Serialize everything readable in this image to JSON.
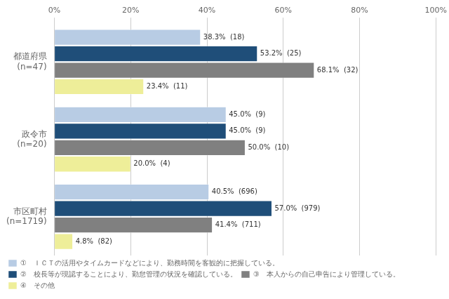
{
  "chart_data": {
    "type": "bar",
    "orientation": "horizontal",
    "categories": [
      [
        "都道府県",
        "(n=47)"
      ],
      [
        "政令市",
        "(n=20)"
      ],
      [
        "市区町村",
        "(n=1719)"
      ]
    ],
    "series": [
      {
        "name": "①　ＩＣＴの活用やタイムカードなどにより、勤務時間を客観的に把握している。",
        "color": "#b8cce4",
        "values": [
          38.3,
          45.0,
          40.5
        ],
        "value_labels": [
          "38.3%  (18)",
          "45.0%  (9)",
          "40.5%  (696)"
        ]
      },
      {
        "name": "②　校長等が現認することにより、勤怠管理の状況を確認している。",
        "color": "#1f4e79",
        "values": [
          53.2,
          45.0,
          57.0
        ],
        "value_labels": [
          "53.2%  (25)",
          "45.0%  (9)",
          "57.0%  (979)"
        ]
      },
      {
        "name": "③　本人からの自己申告により管理している。",
        "color": "#808080",
        "values": [
          68.1,
          50.0,
          41.4
        ],
        "value_labels": [
          "68.1%  (32)",
          "50.0%  (10)",
          "41.4%  (711)"
        ]
      },
      {
        "name": "④　その他",
        "color": "#eeee99",
        "values": [
          23.4,
          20.0,
          4.8
        ],
        "value_labels": [
          "23.4%  (11)",
          "20.0%  (4)",
          "4.8%  (82)"
        ]
      }
    ],
    "xlim": [
      0,
      100
    ],
    "xticks": [
      {
        "value": 0,
        "label": "0%"
      },
      {
        "value": 20,
        "label": "20%"
      },
      {
        "value": 40,
        "label": "40%"
      },
      {
        "value": 60,
        "label": "60%"
      },
      {
        "value": 80,
        "label": "80%"
      },
      {
        "value": 100,
        "label": "100%"
      }
    ],
    "grid": true,
    "legend": "bottom",
    "data_labels": true
  }
}
